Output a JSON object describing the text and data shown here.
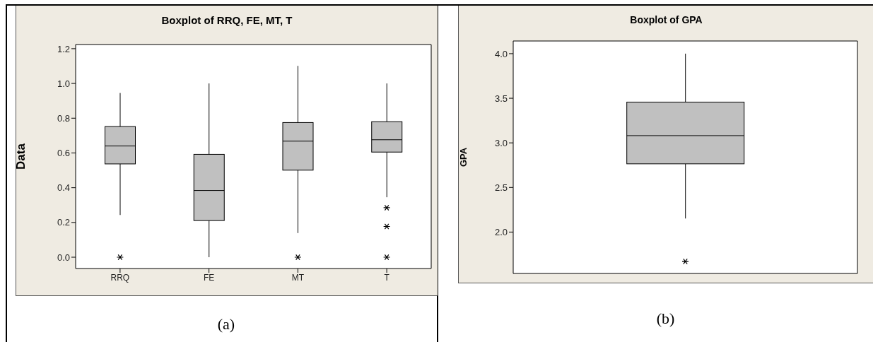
{
  "chart_data": [
    {
      "type": "box",
      "title": "Boxplot of RRQ, FE, MT, T",
      "ylabel": "Data",
      "categories": [
        "RRQ",
        "FE",
        "MT",
        "T"
      ],
      "color": "#c0c0c0",
      "boxes": [
        {
          "low": 0.243,
          "q1": 0.537,
          "median": 0.64,
          "q3": 0.752,
          "high": 0.945,
          "outliers": [
            0
          ]
        },
        {
          "low": 0,
          "q1": 0.211,
          "median": 0.384,
          "q3": 0.592,
          "high": 1.0
        },
        {
          "low": 0.139,
          "q1": 0.501,
          "median": 0.668,
          "q3": 0.775,
          "high": 1.101,
          "outliers": [
            0
          ]
        },
        {
          "low": 0.345,
          "q1": 0.605,
          "median": 0.676,
          "q3": 0.78,
          "high": 1.0,
          "outliers": [
            0.285,
            0.177,
            0
          ]
        }
      ],
      "ylim": [
        -0.065,
        1.224
      ],
      "yticks": [
        {
          "value": 0,
          "label": "0.0"
        },
        0.2,
        0.4,
        0.6,
        0.8,
        {
          "value": 1,
          "label": "1.0"
        },
        1.2
      ],
      "grid": false,
      "annotations": [
        "(a)"
      ]
    },
    {
      "type": "box",
      "title": "Boxplot of GPA",
      "ylabel": "GPA",
      "categories": [
        null
      ],
      "color": "#c0c0c0",
      "boxes": [
        {
          "low": 2.152,
          "q1": 2.765,
          "median": 3.081,
          "q3": 3.457,
          "high": 4.0,
          "outliers": [
            1.67
          ]
        }
      ],
      "ylim": [
        1.536,
        4.142
      ],
      "yticks": [
        {
          "value": 2,
          "label": "2.0"
        },
        2.5,
        {
          "value": 3,
          "label": "3.0"
        },
        3.5,
        {
          "value": 4,
          "label": "4.0"
        }
      ],
      "grid": false,
      "tick_labels": "y",
      "annotations": [
        "(b)"
      ]
    }
  ]
}
